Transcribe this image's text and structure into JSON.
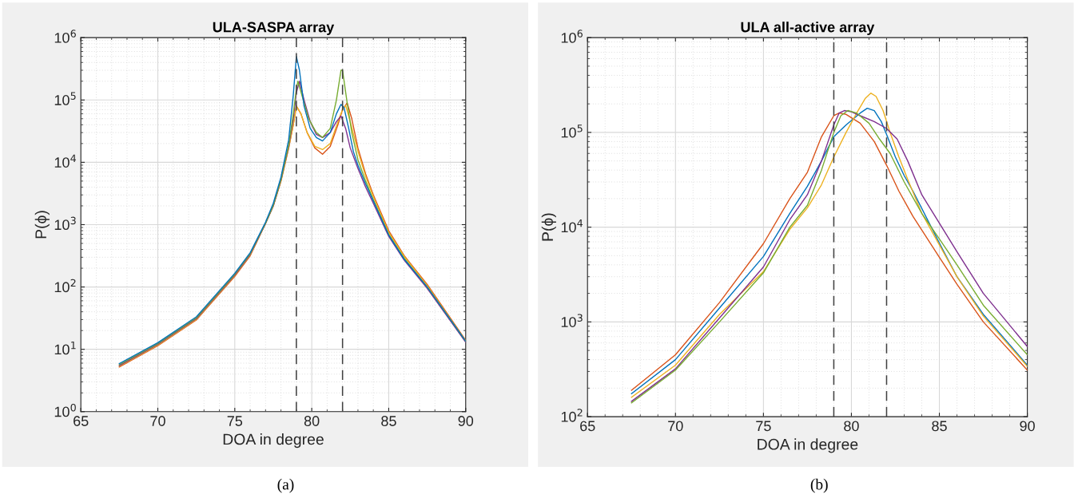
{
  "chart_data": [
    {
      "type": "line",
      "title": "ULA-SASPA array",
      "xlabel": "DOA in degree",
      "ylabel": "P(ϕ)",
      "log": "y",
      "grid": true,
      "line_style": "solid",
      "marker": "none",
      "xlim": [
        65,
        90
      ],
      "xticks": [
        65,
        70,
        75,
        80,
        85,
        90
      ],
      "ylim": [
        1,
        1000000
      ],
      "yticks": [
        {
          "value": 1,
          "label": "10$^{0}$"
        },
        {
          "value": 10,
          "label": "10$^{1}$"
        },
        {
          "value": 100,
          "label": "10$^{2}$"
        },
        {
          "value": 1000,
          "label": "10$^{3}$"
        },
        {
          "value": 10000,
          "label": "10$^{4}$"
        },
        {
          "value": 100000,
          "label": "10$^{5}$"
        },
        {
          "value": 1000000,
          "label": "10$^{6}$"
        }
      ],
      "ref_lines": [
        {
          "axis": "x",
          "value": 79,
          "color": "#404040",
          "line_style": "dashed"
        },
        {
          "axis": "x",
          "value": 82,
          "color": "#404040",
          "line_style": "dashed"
        }
      ],
      "annotations": [
        "(a)"
      ],
      "series": [
        {
          "color": "#d95319",
          "x": [
            67.5,
            70,
            72.5,
            75,
            76,
            77,
            77.5,
            78,
            78.5,
            78.8,
            79.0,
            79.3,
            79.7,
            80.2,
            80.7,
            81.2,
            81.7,
            82.0,
            82.3,
            82.6,
            83,
            83.5,
            84,
            85,
            86,
            87.5,
            90
          ],
          "values": [
            5.2,
            11.4,
            29.5,
            148,
            316,
            1050,
            2000,
            5000,
            17000,
            40000,
            80000,
            60000,
            30000,
            17000,
            13500,
            18000,
            40000,
            70000,
            90000,
            50000,
            17000,
            6500,
            3000,
            800,
            320,
            110,
            14
          ]
        },
        {
          "color": "#edb120",
          "x": [
            67.5,
            70,
            72.5,
            75,
            76,
            77,
            77.5,
            78,
            78.5,
            78.8,
            79.0,
            79.3,
            79.7,
            80.2,
            80.7,
            81.2,
            81.7,
            82.0,
            82.2,
            82.5,
            83,
            83.5,
            84,
            85,
            86,
            87.5,
            90
          ],
          "values": [
            5.35,
            11.7,
            30.3,
            152,
            325,
            1050,
            2000,
            5000,
            17000,
            40000,
            80000,
            60000,
            30000,
            18000,
            16000,
            20000,
            45000,
            70000,
            82000,
            45000,
            15000,
            6000,
            2800,
            750,
            310,
            105,
            13.5
          ]
        },
        {
          "color": "#7e2f8e",
          "x": [
            67.5,
            70,
            72.5,
            75,
            76,
            77,
            77.5,
            78,
            78.5,
            78.8,
            79.0,
            79.2,
            79.5,
            79.9,
            80.3,
            80.7,
            81.2,
            81.6,
            81.9,
            82.2,
            82.5,
            83,
            83.5,
            84,
            85,
            86,
            87.5,
            90
          ],
          "values": [
            5.5,
            12,
            31.1,
            156,
            333,
            1050,
            2000,
            5200,
            18000,
            50000,
            130000,
            200000,
            100000,
            45000,
            28000,
            25000,
            30000,
            45000,
            55000,
            35000,
            17000,
            8000,
            4000,
            2200,
            650,
            270,
            95,
            13
          ]
        },
        {
          "color": "#77ac30",
          "x": [
            67.5,
            70,
            72.5,
            75,
            76,
            77,
            77.5,
            78,
            78.5,
            78.8,
            79.0,
            79.1,
            79.4,
            79.8,
            80.3,
            80.7,
            81.2,
            81.6,
            81.9,
            82.0,
            82.3,
            82.6,
            83,
            83.5,
            84,
            85,
            86,
            87.5,
            90
          ],
          "values": [
            5.7,
            12.4,
            32,
            161,
            343,
            1060,
            2050,
            5300,
            19000,
            60000,
            150000,
            200000,
            110000,
            50000,
            30000,
            25000,
            35000,
            100000,
            300000,
            300000,
            90000,
            30000,
            11000,
            5000,
            2500,
            700,
            290,
            100,
            13.5
          ]
        },
        {
          "color": "#0072bd",
          "x": [
            67.5,
            70,
            72.5,
            75,
            76,
            77,
            77.5,
            78,
            78.5,
            78.8,
            79.0,
            79.2,
            79.5,
            79.9,
            80.3,
            80.7,
            81.2,
            81.6,
            81.9,
            82.1,
            82.4,
            82.7,
            83,
            83.5,
            84,
            85,
            86,
            87.5,
            90
          ],
          "values": [
            5.9,
            12.8,
            33.2,
            166,
            355,
            1100,
            2200,
            5800,
            23000,
            120000,
            500000,
            300000,
            80000,
            35000,
            25000,
            22000,
            30000,
            60000,
            85000,
            75000,
            35000,
            15000,
            9000,
            4500,
            2400,
            680,
            280,
            100,
            13.5
          ]
        }
      ]
    },
    {
      "type": "line",
      "title": "ULA all-active array",
      "xlabel": "DOA in degree",
      "ylabel": "P(ϕ)",
      "log": "y",
      "grid": true,
      "line_style": "solid",
      "marker": "none",
      "xlim": [
        65,
        90
      ],
      "xticks": [
        65,
        70,
        75,
        80,
        85,
        90
      ],
      "ylim": [
        100,
        1000000
      ],
      "yticks": [
        {
          "value": 100,
          "label": "10$^{2}$"
        },
        {
          "value": 1000,
          "label": "10$^{3}$"
        },
        {
          "value": 10000,
          "label": "10$^{4}$"
        },
        {
          "value": 100000,
          "label": "10$^{5}$"
        },
        {
          "value": 1000000,
          "label": "10$^{6}$"
        }
      ],
      "ref_lines": [
        {
          "axis": "x",
          "value": 79,
          "color": "#404040",
          "line_style": "dashed"
        },
        {
          "axis": "x",
          "value": 82,
          "color": "#404040",
          "line_style": "dashed"
        }
      ],
      "annotations": [
        "(b)"
      ],
      "series": [
        {
          "color": "#d95319",
          "x": [
            67.5,
            70,
            72.5,
            75,
            76.5,
            77.5,
            78.3,
            79,
            79.3,
            79.7,
            80.5,
            81.3,
            82,
            82.7,
            83.5,
            85,
            86,
            87.5,
            90
          ],
          "values": [
            190,
            450,
            1600,
            6700,
            20000,
            38000,
            90000,
            150000,
            160000,
            155000,
            125000,
            80000,
            45000,
            24000,
            13000,
            4800,
            2500,
            1000,
            310
          ]
        },
        {
          "color": "#0072bd",
          "x": [
            67.5,
            70,
            72.5,
            75,
            76.5,
            77.5,
            78.3,
            79,
            79.7,
            80.5,
            80.9,
            81.3,
            81.7,
            82,
            82.5,
            83,
            83.5,
            85,
            86,
            87.5,
            90
          ],
          "values": [
            175,
            400,
            1400,
            4900,
            14000,
            27000,
            50000,
            90000,
            120000,
            160000,
            180000,
            170000,
            130000,
            95000,
            55000,
            35000,
            24000,
            6800,
            3000,
            1200,
            350
          ]
        },
        {
          "color": "#edb120",
          "x": [
            67.5,
            70,
            72.5,
            75,
            76.5,
            77.5,
            78.3,
            79,
            79.7,
            80.3,
            80.8,
            81.1,
            81.4,
            81.8,
            82.2,
            82.7,
            83.2,
            84,
            85,
            86,
            87.5,
            90
          ],
          "values": [
            160,
            350,
            1200,
            3400,
            9500,
            16000,
            28000,
            55000,
            100000,
            160000,
            230000,
            260000,
            240000,
            170000,
            100000,
            55000,
            32000,
            14000,
            6500,
            3000,
            1150,
            340
          ]
        },
        {
          "color": "#7e2f8e",
          "x": [
            67.5,
            70,
            72.5,
            75,
            76.5,
            77.5,
            78.3,
            79,
            79.3,
            79.6,
            80,
            80.5,
            81.3,
            82,
            82.6,
            83.2,
            84,
            85,
            86,
            87.5,
            90
          ],
          "values": [
            145,
            320,
            1100,
            3800,
            12000,
            22000,
            50000,
            120000,
            160000,
            170000,
            165000,
            150000,
            130000,
            110000,
            85000,
            50000,
            22000,
            11000,
            5500,
            2000,
            550
          ]
        },
        {
          "color": "#77ac30",
          "x": [
            67.5,
            70,
            72.5,
            75,
            76.5,
            77.5,
            78.3,
            79,
            79.4,
            79.8,
            80.3,
            81,
            81.6,
            82.2,
            83,
            84,
            85,
            86,
            87.5,
            90
          ],
          "values": [
            140,
            310,
            1000,
            3300,
            10000,
            17000,
            40000,
            100000,
            150000,
            170000,
            160000,
            125000,
            85000,
            60000,
            30000,
            14000,
            7500,
            4000,
            1500,
            450
          ]
        }
      ]
    }
  ]
}
